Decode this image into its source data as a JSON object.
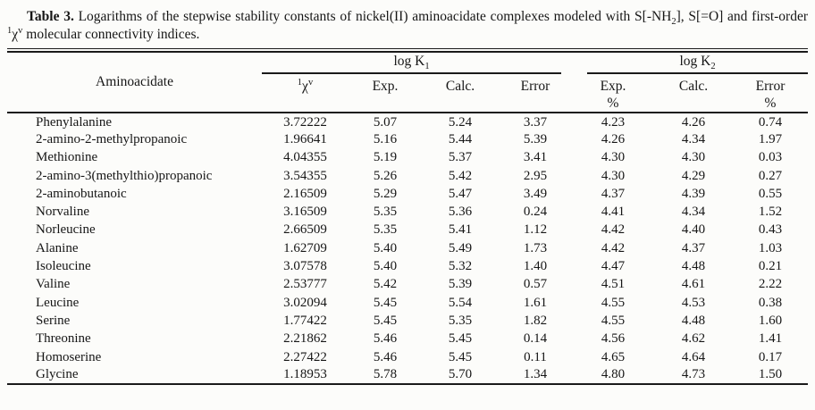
{
  "caption": {
    "label": "Table 3.",
    "part1": " Logarithms of the stepwise stability constants of nickel(II) aminoacidate complexes modeled with S[-NH",
    "nh2_sub": "2",
    "part2": "], S[=O] and first-order ",
    "chi_sup": "1",
    "chi": "χ",
    "chi_exp": "v",
    "part3": " molecular connectivity indices."
  },
  "table": {
    "group_headers": {
      "k1_label": "log K",
      "k1_sub": "1",
      "k2_label": "log K",
      "k2_sub": "2"
    },
    "column_headers": {
      "aminoacidate": "Aminoacidate",
      "chi_sup": "1",
      "chi": "χ",
      "chi_exp": "v",
      "k1_exp": "Exp.",
      "k1_calc": "Calc.",
      "k1_error": "Error",
      "k2_exp": "Exp.",
      "k2_calc": "Calc.",
      "k2_error": "Error",
      "k2_exp_unit": "%",
      "k2_error_unit": "%"
    },
    "column_keys": [
      "aminoacidate",
      "chi-v",
      "k1-exp",
      "k1-calc",
      "k1-error",
      "k2-exp-pct",
      "k2-calc",
      "k2-error-pct"
    ],
    "rows": [
      [
        "Phenylalanine",
        "3.72222",
        "5.07",
        "5.24",
        "3.37",
        "4.23",
        "4.26",
        "0.74"
      ],
      [
        "2-amino-2-methylpropanoic",
        "1.96641",
        "5.16",
        "5.44",
        "5.39",
        "4.26",
        "4.34",
        "1.97"
      ],
      [
        "Methionine",
        "4.04355",
        "5.19",
        "5.37",
        "3.41",
        "4.30",
        "4.30",
        "0.03"
      ],
      [
        "2-amino-3(methylthio)propanoic",
        "3.54355",
        "5.26",
        "5.42",
        "2.95",
        "4.30",
        "4.29",
        "0.27"
      ],
      [
        "2-aminobutanoic",
        "2.16509",
        "5.29",
        "5.47",
        "3.49",
        "4.37",
        "4.39",
        "0.55"
      ],
      [
        "Norvaline",
        "3.16509",
        "5.35",
        "5.36",
        "0.24",
        "4.41",
        "4.34",
        "1.52"
      ],
      [
        "Norleucine",
        "2.66509",
        "5.35",
        "5.41",
        "1.12",
        "4.42",
        "4.40",
        "0.43"
      ],
      [
        "Alanine",
        "1.62709",
        "5.40",
        "5.49",
        "1.73",
        "4.42",
        "4.37",
        "1.03"
      ],
      [
        "Isoleucine",
        "3.07578",
        "5.40",
        "5.32",
        "1.40",
        "4.47",
        "4.48",
        "0.21"
      ],
      [
        "Valine",
        "2.53777",
        "5.42",
        "5.39",
        "0.57",
        "4.51",
        "4.61",
        "2.22"
      ],
      [
        "Leucine",
        "3.02094",
        "5.45",
        "5.54",
        "1.61",
        "4.55",
        "4.53",
        "0.38"
      ],
      [
        "Serine",
        "1.77422",
        "5.45",
        "5.35",
        "1.82",
        "4.55",
        "4.48",
        "1.60"
      ],
      [
        "Threonine",
        "2.21862",
        "5.46",
        "5.45",
        "0.14",
        "4.56",
        "4.62",
        "1.41"
      ],
      [
        "Homoserine",
        "2.27422",
        "5.46",
        "5.45",
        "0.11",
        "4.65",
        "4.64",
        "0.17"
      ],
      [
        "Glycine",
        "1.18953",
        "5.78",
        "5.70",
        "1.34",
        "4.80",
        "4.73",
        "1.50"
      ]
    ]
  },
  "colors": {
    "text": "#161616",
    "rule": "#1a1a1a",
    "background": "#fcfcfa"
  }
}
